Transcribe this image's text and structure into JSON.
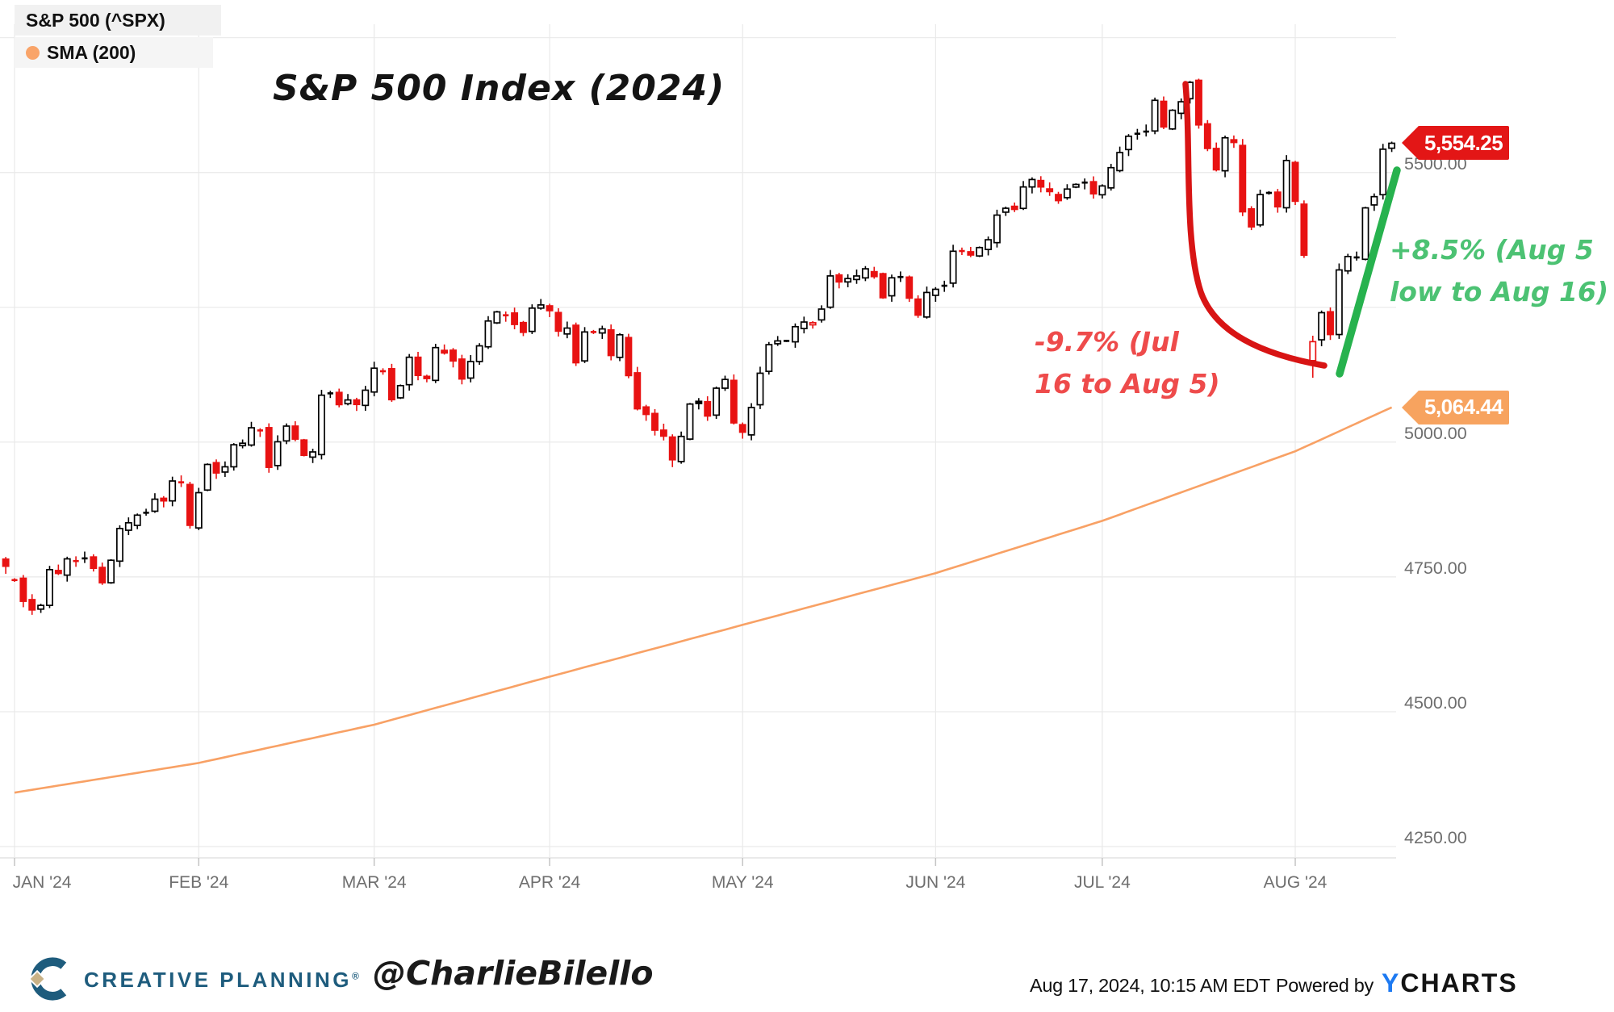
{
  "title": "S&P 500 Index (2024)",
  "legend": {
    "row1": "S&P 500 (^SPX)",
    "row2": "SMA (200)"
  },
  "footer": {
    "brand": "CREATIVE PLANNING",
    "brand_mark": "®",
    "handle": "@CharlieBilello",
    "timestamp": "Aug 17, 2024, 10:15 AM EDT",
    "powered_by": "Powered by",
    "ycharts_y": "Y",
    "ycharts_rest": "CHARTS"
  },
  "chart_data": {
    "type": "candlestick+line",
    "title": "S&P 500 Index (2024)",
    "legend_position": "top-left",
    "grid": true,
    "colors": {
      "candle_up": "#000000",
      "candle_up_fill": "#ffffff",
      "candle_down": "#e81212",
      "sma": "#f8a165",
      "sma_dot": "#f9a469",
      "price_flag": "#e31616",
      "sma_flag": "#f7a35f",
      "drawdown_arrow": "#d81414",
      "rebound_line": "#27b24e",
      "drawdown_text": "#ee4b4b",
      "rebound_text": "#4cc273",
      "grid_line": "#e9e9e9",
      "axis_text": "#6e6e6e"
    },
    "y_axis": {
      "range": [
        4229,
        5775
      ],
      "gridlines": [
        5750,
        5500,
        5250,
        5000,
        4750,
        4500,
        4250
      ],
      "labels": [
        {
          "v": 5500,
          "t": "5500.00"
        },
        {
          "v": 5000,
          "t": "5000.00"
        },
        {
          "v": 4750,
          "t": "4750.00"
        },
        {
          "v": 4500,
          "t": "4500.00"
        },
        {
          "v": 4250,
          "t": "4250.00"
        }
      ]
    },
    "x_axis": {
      "labels": [
        "JAN '24",
        "FEB '24",
        "MAR '24",
        "APR '24",
        "MAY '24",
        "JUN '24",
        "JUL '24",
        "AUG '24"
      ]
    },
    "annotations": {
      "drawdown": {
        "line1": "-9.7% (Jul",
        "line2": "16 to Aug 5)",
        "text": "-9.7% (Jul 16 to Aug 5)"
      },
      "rebound": {
        "line1": "+8.5% (Aug 5",
        "line2": "low to Aug 16)",
        "text": "+8.5% (Aug 5 low to Aug 16)"
      }
    },
    "last_price_labels": {
      "price": {
        "label": "5,554.25",
        "value": 5554.25
      },
      "sma": {
        "label": "5,064.44",
        "value": 5064.44
      }
    },
    "series": [
      {
        "name": "S&P 500 (^SPX)",
        "type": "candlestick",
        "prev_close": 4769.8,
        "prelude_candle": {
          "open": 4783,
          "close": 4769.8
        },
        "months": [
          {
            "label": "JAN '24",
            "days": [
              2,
              3,
              4,
              5,
              8,
              9,
              10,
              11,
              12,
              16,
              17,
              18,
              19,
              22,
              23,
              24,
              25,
              26,
              29,
              30,
              31
            ]
          },
          {
            "label": "FEB '24",
            "days": [
              1,
              2,
              5,
              6,
              7,
              8,
              9,
              12,
              13,
              14,
              15,
              16,
              20,
              21,
              22,
              23,
              26,
              27,
              28,
              29
            ]
          },
          {
            "label": "MAR '24",
            "days": [
              1,
              4,
              5,
              6,
              7,
              8,
              11,
              12,
              13,
              14,
              15,
              18,
              19,
              20,
              21,
              22,
              25,
              26,
              27,
              28
            ]
          },
          {
            "label": "APR '24",
            "days": [
              1,
              2,
              3,
              4,
              5,
              8,
              9,
              10,
              11,
              12,
              15,
              16,
              17,
              18,
              19,
              22,
              23,
              24,
              25,
              26,
              29,
              30
            ]
          },
          {
            "label": "MAY '24",
            "days": [
              1,
              2,
              3,
              6,
              7,
              8,
              9,
              10,
              13,
              14,
              15,
              16,
              17,
              20,
              21,
              22,
              23,
              24,
              28,
              29,
              30,
              31
            ]
          },
          {
            "label": "JUN '24",
            "days": [
              3,
              4,
              5,
              6,
              7,
              10,
              11,
              12,
              13,
              14,
              17,
              18,
              20,
              21,
              24,
              25,
              26,
              27,
              28
            ]
          },
          {
            "label": "JUL '24",
            "days": [
              1,
              2,
              3,
              5,
              8,
              9,
              10,
              11,
              12,
              15,
              16,
              17,
              18,
              19,
              22,
              23,
              24,
              25,
              26,
              29,
              30,
              31
            ]
          },
          {
            "label": "AUG '24",
            "days": [
              1,
              2,
              5,
              6,
              7,
              8,
              9,
              12,
              13,
              14,
              15,
              16
            ]
          }
        ],
        "closes": [
          4742.8,
          4704.8,
          4688.7,
          4697.2,
          4763.5,
          4756.5,
          4783.5,
          4780.2,
          4783.8,
          4766.0,
          4739.2,
          4780.9,
          4839.8,
          4850.4,
          4864.6,
          4868.6,
          4894.2,
          4891.0,
          4927.9,
          4924.7,
          4845.7,
          4906.2,
          4958.6,
          4942.8,
          4954.2,
          4995.1,
          4997.9,
          5026.6,
          5021.8,
          4953.2,
          5000.6,
          5029.7,
          5005.6,
          4975.5,
          4981.8,
          5087.0,
          5088.8,
          5069.5,
          5078.2,
          5069.8,
          5096.3,
          5137.1,
          5131.0,
          5078.7,
          5104.8,
          5157.4,
          5123.7,
          5117.9,
          5175.3,
          5165.3,
          5150.5,
          5117.1,
          5149.4,
          5178.5,
          5224.6,
          5241.5,
          5234.2,
          5218.2,
          5203.6,
          5248.5,
          5254.4,
          5243.8,
          5205.8,
          5211.5,
          5147.2,
          5204.3,
          5202.4,
          5209.9,
          5160.6,
          5199.1,
          5123.4,
          5061.8,
          5051.4,
          5022.2,
          5011.1,
          4967.2,
          5010.6,
          5070.6,
          5071.6,
          5048.4,
          5100.0,
          5116.2,
          5035.7,
          5018.4,
          5064.2,
          5127.8,
          5180.7,
          5187.7,
          5187.7,
          5214.1,
          5222.7,
          5221.4,
          5246.7,
          5308.2,
          5297.1,
          5303.3,
          5308.1,
          5321.4,
          5307.0,
          5267.8,
          5304.7,
          5306.0,
          5267.0,
          5235.5,
          5277.5,
          5283.4,
          5291.3,
          5354.0,
          5353.0,
          5347.0,
          5360.8,
          5375.3,
          5421.0,
          5433.7,
          5431.6,
          5473.2,
          5487.0,
          5473.2,
          5464.6,
          5447.9,
          5469.3,
          5477.9,
          5482.9,
          5460.5,
          5475.1,
          5509.0,
          5537.0,
          5567.2,
          5572.9,
          5577.0,
          5633.9,
          5584.5,
          5615.4,
          5631.2,
          5667.2,
          5588.3,
          5544.6,
          5505.0,
          5564.4,
          5555.7,
          5427.1,
          5399.2,
          5459.1,
          5463.5,
          5436.4,
          5522.3,
          5446.7,
          5346.6,
          5186.3,
          5240.0,
          5199.5,
          5319.3,
          5344.2,
          5344.4,
          5434.4,
          5455.2,
          5543.2,
          5554.25
        ],
        "open_overrides": {
          "0": 4745.6,
          "148": 5151.1
        },
        "high_overrides": {
          "134": 5669.7
        },
        "low_overrides": {
          "75": 4953.6,
          "148": 5119.3
        }
      },
      {
        "name": "SMA (200)",
        "type": "line",
        "anchors": [
          [
            0,
            4350
          ],
          [
            21,
            4405
          ],
          [
            41,
            4476
          ],
          [
            61,
            4565
          ],
          [
            83,
            4661
          ],
          [
            105,
            4757
          ],
          [
            124,
            4854
          ],
          [
            146,
            4983
          ],
          [
            157,
            5064.44
          ]
        ],
        "last_value": 5064.44
      }
    ]
  }
}
